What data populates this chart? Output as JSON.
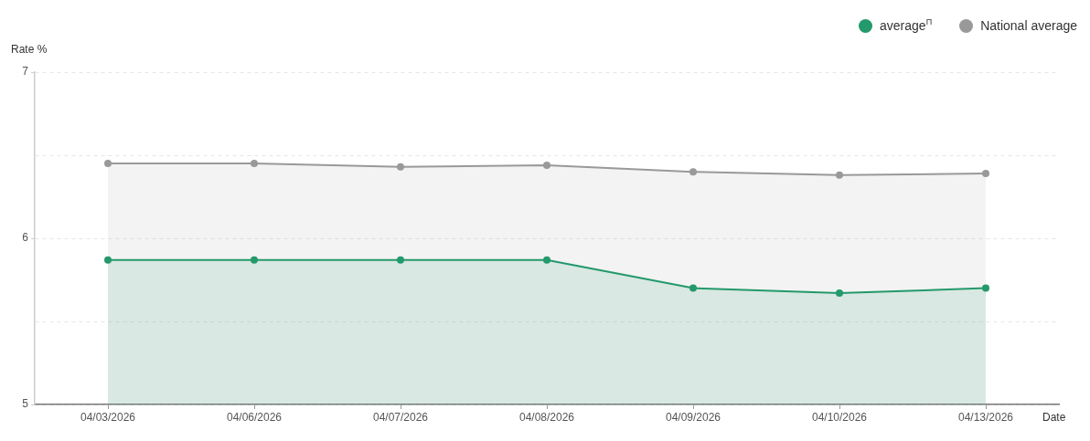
{
  "chart_data": {
    "type": "area",
    "xlabel": "Date",
    "ylabel": "Rate %",
    "categories": [
      "04/03/2026",
      "04/06/2026",
      "04/07/2026",
      "04/08/2026",
      "04/09/2026",
      "04/10/2026",
      "04/13/2026"
    ],
    "series": [
      {
        "name": "average$^{Π}$",
        "color": "#23996c",
        "values": [
          5.87,
          5.87,
          5.87,
          5.87,
          5.7,
          5.67,
          5.7
        ]
      },
      {
        "name": "National average",
        "color": "#999999",
        "values": [
          6.45,
          6.45,
          6.43,
          6.44,
          6.4,
          6.38,
          6.39
        ]
      }
    ],
    "ylim": [
      5,
      7
    ],
    "yticks": [
      5,
      {
        "value": 5.5,
        "label": null
      },
      6,
      {
        "value": 6.5,
        "label": null
      },
      7
    ],
    "grid": "y",
    "legend": "top right",
    "marker": "circle"
  }
}
